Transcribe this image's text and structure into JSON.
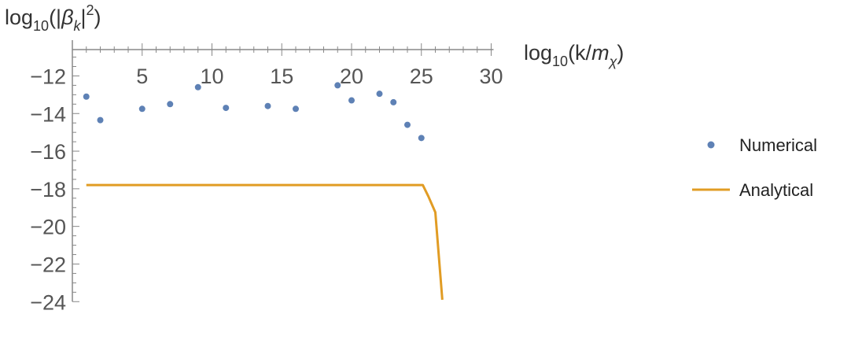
{
  "chart_data": {
    "type": "scatter",
    "title": "",
    "xlabel": {
      "prefix": "log",
      "sub": "10",
      "body_open": "(k/",
      "var": "m",
      "var_sub": "χ",
      "close": ")"
    },
    "ylabel": {
      "prefix": "log",
      "sub": "10",
      "body_open": "(|",
      "var": "β",
      "var_sub": "k",
      "close": "|",
      "sup": "2",
      "tail": ")"
    },
    "xlim": [
      0,
      30
    ],
    "ylim": [
      -24,
      -10.6
    ],
    "x_ticks": [
      5,
      10,
      15,
      20,
      25,
      30
    ],
    "x_tick_labels": [
      "5",
      "10",
      "15",
      "20",
      "25",
      "30"
    ],
    "y_ticks": [
      -12,
      -14,
      -16,
      -18,
      -20,
      -22,
      -24
    ],
    "y_tick_labels": [
      "−12",
      "−14",
      "−16",
      "−18",
      "−20",
      "−22",
      "−24"
    ],
    "grid": false,
    "legend_position": "right",
    "colors": {
      "numerical": "#5e81b5",
      "analytical": "#e19c24",
      "axis": "#888888"
    },
    "series": [
      {
        "name": "Numerical",
        "kind": "scatter",
        "x": [
          1,
          2,
          5,
          7,
          9,
          11,
          14,
          16,
          19,
          20,
          22,
          23,
          24,
          25
        ],
        "y": [
          -13.1,
          -14.35,
          -13.75,
          -13.5,
          -12.6,
          -13.7,
          -13.6,
          -13.75,
          -12.5,
          -13.3,
          -12.95,
          -13.4,
          -14.6,
          -15.3
        ]
      },
      {
        "name": "Analytical",
        "kind": "line",
        "x": [
          1,
          24.9,
          25.1,
          25.5,
          26.0,
          26.5
        ],
        "y": [
          -17.8,
          -17.8,
          -17.8,
          -18.4,
          -19.25,
          -23.9
        ]
      }
    ]
  }
}
